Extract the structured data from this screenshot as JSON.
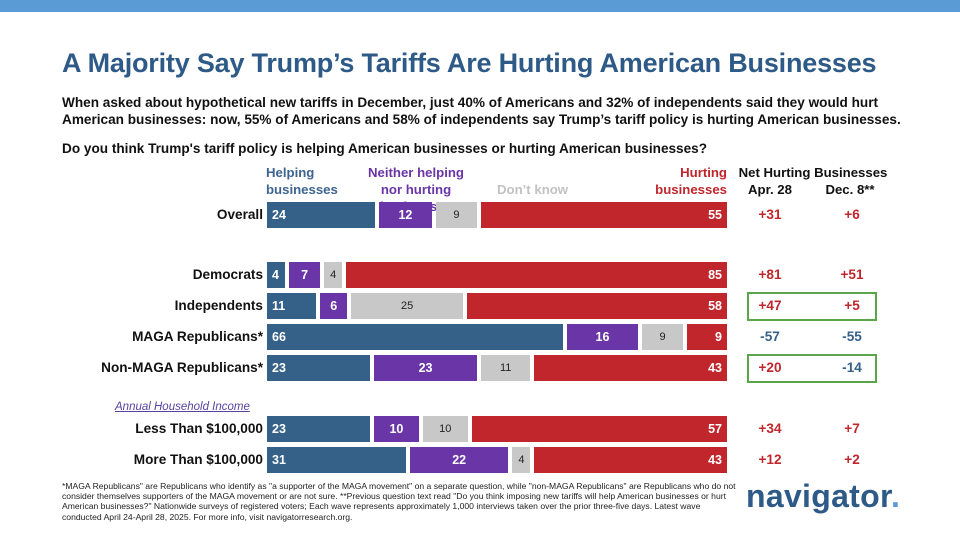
{
  "title": "A Majority Say Trump’s Tariffs Are Hurting American Businesses",
  "subtitle": "When asked about hypothetical new tariffs in December, just 40% of Americans and 32% of independents said they would hurt American businesses: now, 55% of Americans and 58% of independents say Trump’s tariff policy is hurting American businesses.",
  "question": "Do you think Trump's tariff policy is helping American businesses or hurting American businesses?",
  "headers": {
    "helping": "Helping businesses",
    "neither": "Neither helping nor hurting businesses",
    "dont_know": "Don’t know",
    "hurting": "Hurting businesses",
    "net": "Net Hurting Businesses",
    "apr": "Apr. 28",
    "dec": "Dec. 8**"
  },
  "income_header": "Annual Household Income",
  "colors": {
    "helping": "#356189",
    "neither": "#6a35a6",
    "dont_know": "#c8c8c8",
    "hurting": "#c0262c",
    "highlight_box": "#5aa64a",
    "title": "#2e5a87"
  },
  "chart_data": {
    "type": "bar",
    "orientation": "horizontal-stacked",
    "categories": [
      "Overall",
      "Democrats",
      "Independents",
      "MAGA Republicans*",
      "Non-MAGA Republicans*",
      "Less Than $100,000",
      "More Than $100,000"
    ],
    "series": [
      {
        "name": "Helping businesses",
        "values": [
          24,
          4,
          11,
          66,
          23,
          23,
          31
        ]
      },
      {
        "name": "Neither helping nor hurting businesses",
        "values": [
          12,
          7,
          6,
          16,
          23,
          10,
          22
        ]
      },
      {
        "name": "Don’t know",
        "values": [
          9,
          4,
          25,
          9,
          11,
          10,
          4
        ]
      },
      {
        "name": "Hurting businesses",
        "values": [
          55,
          85,
          58,
          9,
          43,
          57,
          43
        ]
      }
    ],
    "net_apr": [
      "+31",
      "+81",
      "+47",
      "-57",
      "+20",
      "+34",
      "+12"
    ],
    "net_dec": [
      "+6",
      "+51",
      "+5",
      "-55",
      "-14",
      "+7",
      "+2"
    ],
    "highlighted_rows": [
      "Independents",
      "Non-MAGA Republicans*"
    ]
  },
  "footnote": "*MAGA Republicans\" are Republicans who identify as \"a supporter of the MAGA movement\" on a separate question, while \"non-MAGA Republicans\" are Republicans who do not consider themselves supporters of the MAGA movement or are not sure. **Previous question text read \"Do you think imposing new tariffs will help American businesses or hurt American businesses?\" Nationwide surveys of registered voters; Each wave represents approximately 1,000 interviews taken over the prior three-five days. Latest wave conducted April 24-April 28, 2025. For more info, visit navigatorresearch.org.",
  "logo": {
    "text": "navigator",
    "dot": "."
  }
}
